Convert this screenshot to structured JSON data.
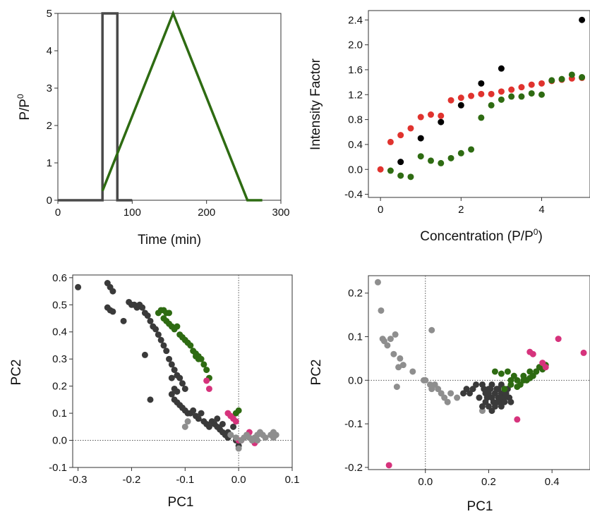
{
  "chart_data": [
    {
      "type": "line",
      "xlabel": "Time (min)",
      "ylabel_base": "P/P",
      "ylabel_sup": "0",
      "xlim": [
        0,
        300
      ],
      "ylim": [
        0,
        5
      ],
      "xticks": [
        0,
        100,
        200,
        300
      ],
      "yticks": [
        0,
        1,
        2,
        3,
        4,
        5
      ],
      "series": [
        {
          "color": "#4a4a4a",
          "x": [
            0,
            60,
            60,
            80,
            80,
            100
          ],
          "y": [
            0,
            0,
            5,
            5,
            0,
            0
          ]
        },
        {
          "color": "#2e6b12",
          "x": [
            60,
            155,
            255,
            275
          ],
          "y": [
            0.25,
            5,
            0,
            0
          ]
        }
      ]
    },
    {
      "type": "scatter",
      "xlabel_base": "Concentration (P/P",
      "xlabel_sup": "0",
      "xlabel_end": ")",
      "ylabel": "Intensity Factor",
      "xlim": [
        -0.3,
        5.2
      ],
      "ylim": [
        -0.45,
        2.55
      ],
      "xticks": [
        0,
        2,
        4
      ],
      "yticks": [
        -0.4,
        0.0,
        0.4,
        0.8,
        1.2,
        1.6,
        2.0,
        2.4
      ],
      "series": [
        {
          "color": "#000000",
          "x": [
            0.5,
            1.0,
            1.5,
            2.0,
            2.5,
            3.0,
            5.0
          ],
          "y": [
            0.12,
            0.5,
            0.76,
            1.03,
            1.38,
            1.62,
            2.4
          ]
        },
        {
          "color": "#e0332e",
          "x": [
            0,
            0.25,
            0.5,
            0.75,
            1.0,
            1.25,
            1.5,
            1.75,
            2.0,
            2.25,
            2.5,
            2.75,
            3.0,
            3.25,
            3.5,
            3.75,
            4.0,
            4.25,
            4.5,
            4.75,
            5.0
          ],
          "y": [
            0.0,
            0.44,
            0.55,
            0.66,
            0.84,
            0.88,
            0.86,
            1.11,
            1.15,
            1.18,
            1.21,
            1.21,
            1.25,
            1.28,
            1.32,
            1.36,
            1.38,
            1.42,
            1.44,
            1.46,
            1.47
          ]
        },
        {
          "color": "#2e6b12",
          "x": [
            0.25,
            0.5,
            0.75,
            1.0,
            1.25,
            1.5,
            1.75,
            2.0,
            2.25,
            2.5,
            2.75,
            3.0,
            3.25,
            3.5,
            3.75,
            4.0,
            4.25,
            4.5,
            4.75,
            5.0
          ],
          "y": [
            -0.02,
            -0.1,
            -0.12,
            0.21,
            0.14,
            0.1,
            0.18,
            0.26,
            0.32,
            0.83,
            1.03,
            1.12,
            1.17,
            1.17,
            1.22,
            1.2,
            1.43,
            1.45,
            1.52,
            1.48
          ]
        }
      ]
    },
    {
      "type": "scatter",
      "xlabel": "PC1",
      "ylabel": "PC2",
      "xlim": [
        -0.31,
        0.1
      ],
      "ylim": [
        -0.1,
        0.61
      ],
      "xticks": [
        -0.3,
        -0.2,
        -0.1,
        0.0,
        0.1
      ],
      "yticks": [
        -0.1,
        0.0,
        0.1,
        0.2,
        0.3,
        0.4,
        0.5,
        0.6
      ],
      "series": [
        {
          "color": "#3a3a3a",
          "x": [
            -0.3,
            -0.245,
            -0.24,
            -0.235,
            -0.245,
            -0.24,
            -0.235,
            -0.215,
            -0.205,
            -0.2,
            -0.195,
            -0.19,
            -0.185,
            -0.18,
            -0.175,
            -0.17,
            -0.165,
            -0.16,
            -0.155,
            -0.15,
            -0.145,
            -0.14,
            -0.135,
            -0.13,
            -0.125,
            -0.12,
            -0.115,
            -0.11,
            -0.105,
            -0.1,
            -0.175,
            -0.165,
            -0.125,
            -0.12,
            -0.115,
            -0.125,
            -0.12,
            -0.115,
            -0.11,
            -0.105,
            -0.1,
            -0.095,
            -0.09,
            -0.085,
            -0.08,
            -0.075,
            -0.07,
            -0.065,
            -0.06,
            -0.055,
            -0.05,
            -0.045,
            -0.04,
            -0.035,
            -0.03,
            -0.025,
            -0.02,
            -0.015,
            -0.01,
            -0.005,
            0.0,
            -0.04,
            -0.03,
            -0.02
          ],
          "y": [
            0.565,
            0.58,
            0.565,
            0.55,
            0.49,
            0.48,
            0.475,
            0.44,
            0.51,
            0.5,
            0.5,
            0.49,
            0.5,
            0.49,
            0.47,
            0.46,
            0.44,
            0.42,
            0.41,
            0.39,
            0.37,
            0.35,
            0.33,
            0.3,
            0.28,
            0.26,
            0.24,
            0.23,
            0.21,
            0.19,
            0.315,
            0.15,
            0.23,
            0.19,
            0.18,
            0.17,
            0.15,
            0.14,
            0.13,
            0.12,
            0.11,
            0.1,
            0.1,
            0.11,
            0.09,
            0.08,
            0.1,
            0.07,
            0.06,
            0.05,
            0.07,
            0.06,
            0.05,
            0.04,
            0.03,
            0.02,
            0.01,
            0.02,
            0.05,
            0.0,
            -0.02,
            0.08,
            0.06,
            0.03
          ]
        },
        {
          "color": "#2e6b12",
          "x": [
            -0.15,
            -0.145,
            -0.14,
            -0.135,
            -0.13,
            -0.14,
            -0.135,
            -0.13,
            -0.125,
            -0.12,
            -0.115,
            -0.11,
            -0.105,
            -0.1,
            -0.095,
            -0.09,
            -0.085,
            -0.08,
            -0.075,
            -0.07,
            -0.065,
            -0.06,
            -0.055,
            -0.08,
            -0.075,
            0.0,
            -0.005
          ],
          "y": [
            0.47,
            0.48,
            0.48,
            0.47,
            0.47,
            0.45,
            0.44,
            0.43,
            0.42,
            0.41,
            0.42,
            0.39,
            0.38,
            0.37,
            0.36,
            0.35,
            0.33,
            0.31,
            0.31,
            0.3,
            0.28,
            0.26,
            0.23,
            0.32,
            0.3,
            0.11,
            0.1
          ]
        },
        {
          "color": "#d6337c",
          "x": [
            -0.06,
            -0.055,
            -0.02,
            -0.015,
            -0.01,
            -0.005,
            0.0,
            0.005,
            0.02,
            0.03,
            0.03
          ],
          "y": [
            0.22,
            0.19,
            0.1,
            0.09,
            0.08,
            0.07,
            0.0,
            0.0,
            0.03,
            0.0,
            -0.01
          ]
        },
        {
          "color": "#8e8e8e",
          "x": [
            -0.095,
            -0.1,
            -0.015,
            -0.005,
            0.005,
            0.01,
            0.015,
            0.02,
            0.025,
            0.03,
            0.035,
            0.04,
            0.045,
            0.05,
            0.06,
            0.065,
            0.065,
            0.07,
            0.035,
            0.0
          ],
          "y": [
            0.07,
            0.05,
            0.02,
            0.01,
            0.0,
            0.01,
            0.02,
            0.01,
            0.0,
            0.01,
            0.0,
            0.03,
            0.02,
            0.01,
            0.02,
            0.03,
            0.01,
            0.02,
            0.02,
            -0.03
          ]
        }
      ]
    },
    {
      "type": "scatter",
      "xlabel": "PC1",
      "ylabel": "PC2",
      "xlim": [
        -0.18,
        0.52
      ],
      "ylim": [
        -0.205,
        0.24
      ],
      "xticks": [
        0.0,
        0.2,
        0.4
      ],
      "yticks": [
        -0.2,
        -0.1,
        0.0,
        0.1,
        0.2
      ],
      "series": [
        {
          "color": "#8e8e8e",
          "x": [
            -0.15,
            -0.14,
            -0.135,
            -0.13,
            -0.12,
            -0.11,
            -0.1,
            -0.095,
            -0.09,
            -0.08,
            -0.085,
            -0.07,
            -0.04,
            -0.005,
            0.0,
            0.02,
            0.03,
            0.04,
            0.05,
            0.06,
            0.07,
            0.08,
            0.1,
            0.18,
            0.02,
            0.015
          ],
          "y": [
            0.225,
            0.16,
            0.095,
            0.09,
            0.08,
            0.095,
            0.06,
            0.105,
            -0.015,
            0.05,
            0.03,
            0.035,
            0.02,
            0.0,
            0.0,
            0.115,
            -0.01,
            -0.02,
            -0.03,
            -0.04,
            -0.05,
            -0.03,
            -0.04,
            -0.07,
            -0.02,
            -0.01
          ]
        },
        {
          "color": "#3a3a3a",
          "x": [
            0.12,
            0.13,
            0.14,
            0.15,
            0.16,
            0.17,
            0.18,
            0.185,
            0.19,
            0.195,
            0.2,
            0.205,
            0.21,
            0.215,
            0.22,
            0.225,
            0.23,
            0.235,
            0.24,
            0.245,
            0.25,
            0.255,
            0.26,
            0.265,
            0.27,
            0.18,
            0.19,
            0.2,
            0.21,
            0.22,
            0.23,
            0.24,
            0.25,
            0.2,
            0.21,
            0.22,
            0.23,
            0.24
          ],
          "y": [
            -0.03,
            -0.02,
            -0.03,
            -0.02,
            -0.01,
            -0.04,
            -0.01,
            -0.02,
            -0.03,
            -0.04,
            -0.03,
            -0.02,
            -0.04,
            -0.05,
            -0.03,
            -0.02,
            -0.04,
            -0.05,
            -0.03,
            -0.04,
            -0.05,
            -0.03,
            -0.02,
            -0.04,
            -0.05,
            -0.06,
            -0.05,
            -0.06,
            -0.07,
            -0.06,
            -0.05,
            -0.06,
            -0.04,
            -0.02,
            -0.01,
            -0.03,
            -0.02,
            -0.01
          ]
        },
        {
          "color": "#2e6b12",
          "x": [
            0.22,
            0.24,
            0.26,
            0.27,
            0.28,
            0.29,
            0.3,
            0.31,
            0.32,
            0.33,
            0.34,
            0.35,
            0.36,
            0.37,
            0.38,
            0.25,
            0.27,
            0.29,
            0.31,
            0.33,
            0.35
          ],
          "y": [
            0.02,
            0.015,
            0.02,
            0.0,
            0.01,
            0.0,
            -0.01,
            0.01,
            0.0,
            0.02,
            0.01,
            0.02,
            0.03,
            0.025,
            0.035,
            -0.02,
            -0.01,
            -0.015,
            0.0,
            0.005,
            0.02
          ]
        },
        {
          "color": "#d6337c",
          "x": [
            -0.115,
            0.29,
            0.33,
            0.34,
            0.37,
            0.38,
            0.42,
            0.5
          ],
          "y": [
            -0.195,
            -0.09,
            0.065,
            0.06,
            0.04,
            0.03,
            0.095,
            0.063
          ]
        }
      ]
    }
  ]
}
